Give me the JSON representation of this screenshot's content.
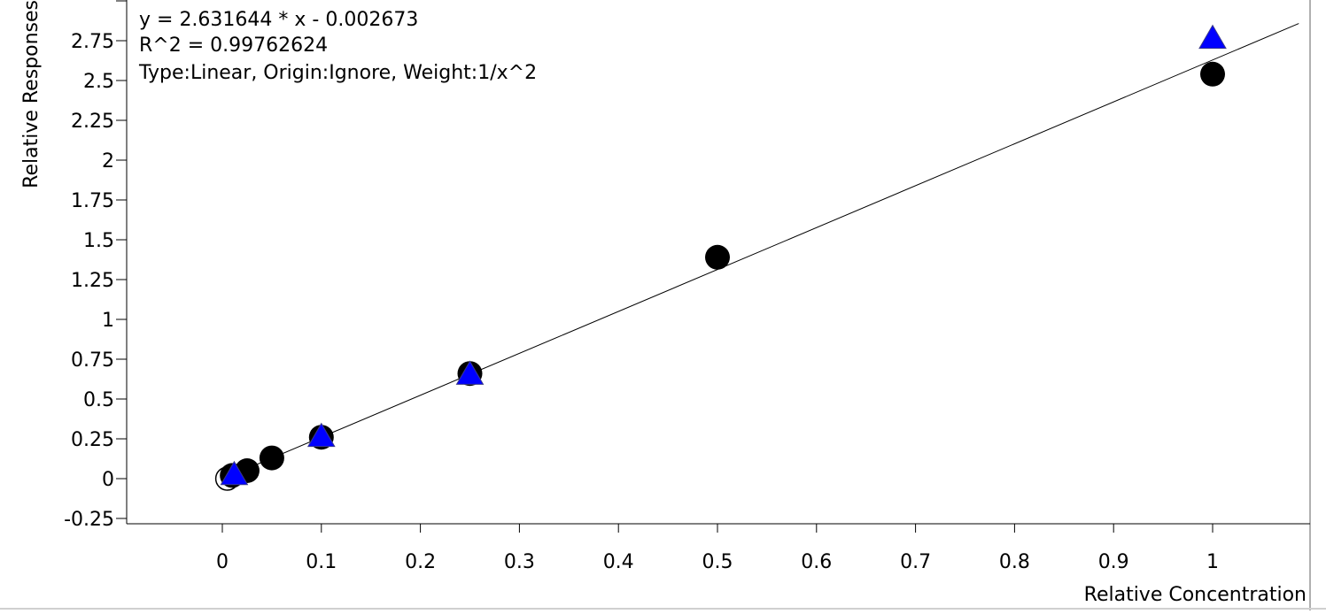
{
  "chart_data": {
    "type": "scatter",
    "xlabel": "Relative Concentration",
    "ylabel": "Relative Responses",
    "xlim": [
      -0.09,
      1.09
    ],
    "ylim": [
      -0.28,
      2.97
    ],
    "x_ticks": [
      "0",
      "0.1",
      "0.2",
      "0.3",
      "0.4",
      "0.5",
      "0.6",
      "0.7",
      "0.8",
      "0.9",
      "1"
    ],
    "y_ticks": [
      "-0.25",
      "0",
      "0.25",
      "0.5",
      "0.75",
      "1",
      "1.25",
      "1.5",
      "1.75",
      "2",
      "2.25",
      "2.5",
      "2.75"
    ],
    "annotations": [
      "y = 2.631644 * x  - 0.002673",
      "R^2 = 0.99762624",
      "Type:Linear, Origin:Ignore, Weight:1/x^2"
    ],
    "fit_line": {
      "slope": 2.631644,
      "intercept": -0.002673
    },
    "series": [
      {
        "marker": "circle",
        "color": "#000000",
        "points": [
          {
            "x": 0.01,
            "y": 0.02
          },
          {
            "x": 0.025,
            "y": 0.05
          },
          {
            "x": 0.05,
            "y": 0.13
          },
          {
            "x": 0.1,
            "y": 0.26
          },
          {
            "x": 0.25,
            "y": 0.66
          },
          {
            "x": 0.5,
            "y": 1.39
          },
          {
            "x": 1.0,
            "y": 2.54
          }
        ]
      },
      {
        "marker": "open-circle",
        "color": "#000000",
        "points": [
          {
            "x": 0.005,
            "y": 0.0
          }
        ]
      },
      {
        "marker": "triangle",
        "color": "#0000ff",
        "points": [
          {
            "x": 0.012,
            "y": 0.02
          },
          {
            "x": 0.1,
            "y": 0.26
          },
          {
            "x": 0.25,
            "y": 0.65
          },
          {
            "x": 1.0,
            "y": 2.76
          }
        ]
      }
    ]
  }
}
